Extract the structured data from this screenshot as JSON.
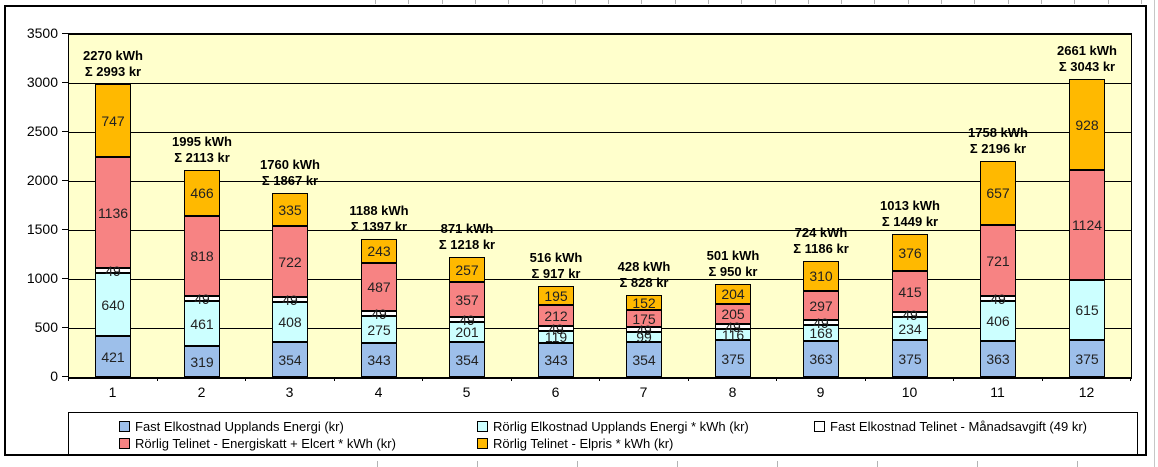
{
  "chart_data": {
    "type": "bar",
    "stacked": true,
    "title": "",
    "xlabel": "",
    "ylabel": "",
    "ylim": [
      0,
      3500
    ],
    "ytick_step": 500,
    "grid": true,
    "legend_position": "bottom",
    "plot_bg": "#FFFFCC",
    "chart_bg": "#FFFFFF",
    "categories": [
      "1",
      "2",
      "3",
      "4",
      "5",
      "6",
      "7",
      "8",
      "9",
      "10",
      "11",
      "12"
    ],
    "series": [
      {
        "name": "Fast Elkostnad Upplands Energi (kr)",
        "color": "#9DBFEA",
        "values": [
          421,
          319,
          354,
          343,
          354,
          343,
          354,
          375,
          363,
          375,
          363,
          375
        ]
      },
      {
        "name": "Rörlig Elkostnad Upplands Energi * kWh (kr)",
        "color": "#CCFFFF",
        "values": [
          640,
          461,
          408,
          275,
          201,
          119,
          99,
          116,
          168,
          234,
          406,
          615
        ]
      },
      {
        "name": "Fast Elkostnad Telinet - Månadsavgift (49 kr)",
        "color": "#FFFFFF",
        "values": [
          49,
          49,
          49,
          49,
          49,
          49,
          49,
          49,
          49,
          49,
          49,
          0
        ]
      },
      {
        "name": "Rörlig Telinet - Energiskatt + Elcert * kWh (kr)",
        "color": "#F78383",
        "values": [
          1136,
          818,
          722,
          487,
          357,
          212,
          175,
          205,
          297,
          415,
          721,
          1124
        ]
      },
      {
        "name": "Rörlig Telinet - Elpris * kWh (kr)",
        "color": "#FFB900",
        "values": [
          747,
          466,
          335,
          243,
          257,
          195,
          152,
          204,
          310,
          376,
          657,
          928
        ]
      }
    ],
    "bar_annotations": [
      {
        "line1": "2270 kWh",
        "line2": "Σ 2993 kr"
      },
      {
        "line1": "1995 kWh",
        "line2": "Σ 2113 kr"
      },
      {
        "line1": "1760 kWh",
        "line2": "Σ 1867 kr"
      },
      {
        "line1": "1188 kWh",
        "line2": "Σ 1397 kr"
      },
      {
        "line1": "871 kWh",
        "line2": "Σ 1218 kr"
      },
      {
        "line1": "516 kWh",
        "line2": "Σ 917 kr"
      },
      {
        "line1": "428 kWh",
        "line2": "Σ 828 kr"
      },
      {
        "line1": "501 kWh",
        "line2": "Σ 950 kr"
      },
      {
        "line1": "724 kWh",
        "line2": "Σ 1186 kr"
      },
      {
        "line1": "1013 kWh",
        "line2": "Σ 1449 kr"
      },
      {
        "line1": "1758 kWh",
        "line2": "Σ 2196 kr"
      },
      {
        "line1": "2661 kWh",
        "line2": "Σ 3043 kr"
      }
    ]
  }
}
